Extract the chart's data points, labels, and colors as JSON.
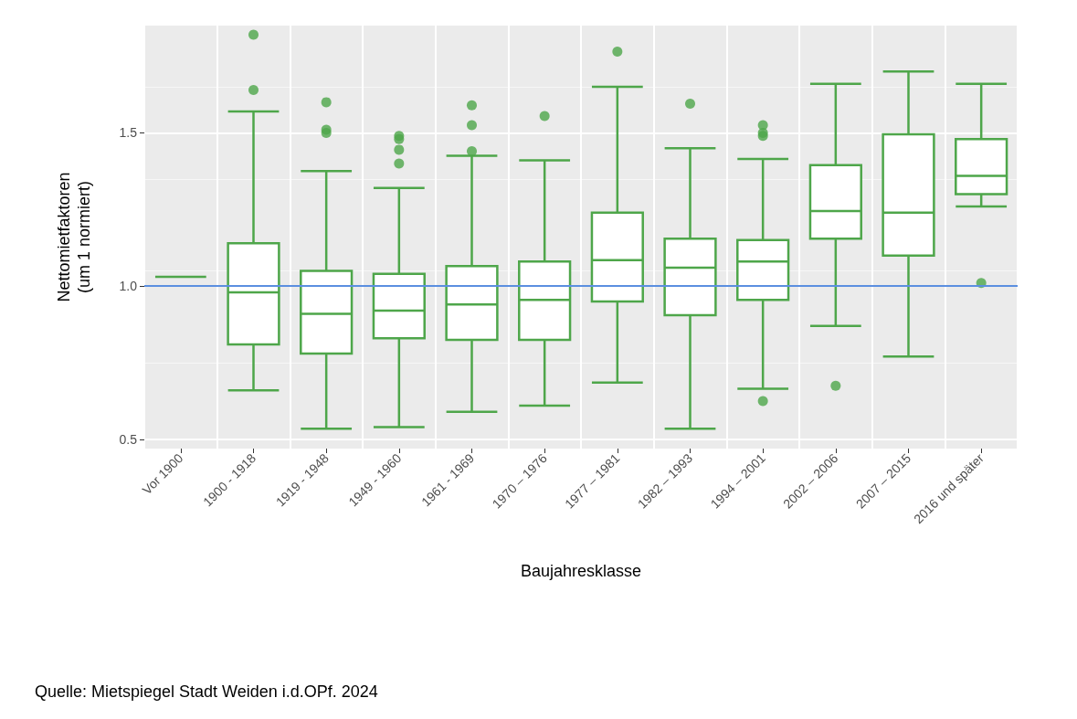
{
  "chart_data": {
    "type": "box",
    "xlabel": "Baujahresklasse",
    "ylabel": "Nettomietfaktoren\n(um 1 normiert)",
    "categories": [
      "Vor 1900",
      "1900 - 1918",
      "1919 - 1948",
      "1949 - 1960",
      "1961 - 1969",
      "1970 – 1976",
      "1977 – 1981",
      "1982 – 1993",
      "1994 – 2001",
      "2002 – 2006",
      "2007 – 2015",
      "2016 und später"
    ],
    "color": "#4ea64a",
    "boxes": [
      {
        "low": 1.03,
        "q1": 1.03,
        "median": 1.03,
        "q3": 1.03,
        "high": 1.03
      },
      {
        "low": 0.66,
        "q1": 0.81,
        "median": 0.98,
        "q3": 1.14,
        "high": 1.57,
        "outliers": [
          1.82,
          1.64
        ]
      },
      {
        "low": 0.535,
        "q1": 0.78,
        "median": 0.91,
        "q3": 1.05,
        "high": 1.375,
        "outliers": [
          1.6,
          1.51,
          1.5
        ]
      },
      {
        "low": 0.54,
        "q1": 0.83,
        "median": 0.92,
        "q3": 1.04,
        "high": 1.32,
        "outliers": [
          1.49,
          1.48,
          1.445,
          1.4
        ]
      },
      {
        "low": 0.59,
        "q1": 0.825,
        "median": 0.94,
        "q3": 1.065,
        "high": 1.425,
        "outliers": [
          1.59,
          1.525,
          1.44
        ]
      },
      {
        "low": 0.61,
        "q1": 0.825,
        "median": 0.955,
        "q3": 1.08,
        "high": 1.41,
        "outliers": [
          1.555
        ]
      },
      {
        "low": 0.685,
        "q1": 0.95,
        "median": 1.085,
        "q3": 1.24,
        "high": 1.65,
        "outliers": [
          1.765
        ]
      },
      {
        "low": 0.535,
        "q1": 0.905,
        "median": 1.06,
        "q3": 1.155,
        "high": 1.45,
        "outliers": [
          1.595
        ]
      },
      {
        "low": 0.665,
        "q1": 0.955,
        "median": 1.08,
        "q3": 1.15,
        "high": 1.415,
        "outliers": [
          1.525,
          1.5,
          1.49,
          0.625
        ]
      },
      {
        "low": 0.87,
        "q1": 1.155,
        "median": 1.245,
        "q3": 1.395,
        "high": 1.66,
        "outliers": [
          0.675
        ]
      },
      {
        "low": 0.77,
        "q1": 1.1,
        "median": 1.24,
        "q3": 1.495,
        "high": 1.7
      },
      {
        "low": 1.26,
        "q1": 1.3,
        "median": 1.36,
        "q3": 1.48,
        "high": 1.66,
        "outliers": [
          1.01
        ]
      }
    ],
    "ylim": [
      0.47,
      1.85
    ],
    "yticks": [
      {
        "value": 0.5,
        "label": "0.5"
      },
      {
        "value": 1,
        "label": "1.0"
      },
      {
        "value": 1.5,
        "label": "1.5"
      }
    ],
    "grid": true,
    "ref_lines": [
      {
        "axis": "y",
        "value": 1,
        "color": "#5b8fe0"
      }
    ],
    "annotations": [
      "Quelle: Mietspiegel Stadt Weiden i.d.OPf. 2024"
    ]
  }
}
